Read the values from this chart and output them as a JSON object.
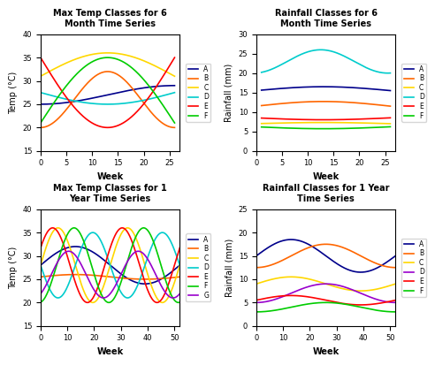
{
  "top_left": {
    "title": "Max Temp Classes for 6\nMonth Time Series",
    "xlabel": "Week",
    "ylabel": "Temp (°C)",
    "xlim": [
      0,
      27
    ],
    "ylim": [
      15,
      40
    ],
    "xticks": [
      0,
      5,
      10,
      15,
      20,
      25
    ],
    "yticks": [
      15,
      20,
      25,
      30,
      35,
      40
    ],
    "series": {
      "A": {
        "color": "#00008B"
      },
      "B": {
        "color": "#FF6600"
      },
      "C": {
        "color": "#FFD700"
      },
      "D": {
        "color": "#00CCCC"
      },
      "E": {
        "color": "#FF0000"
      },
      "F": {
        "color": "#00CC00"
      }
    }
  },
  "top_right": {
    "title": "Rainfall Classes for 6\nMonth Time Series",
    "xlabel": "Week",
    "ylabel": "Rainfall (mm)",
    "xlim": [
      0,
      27
    ],
    "ylim": [
      0,
      30
    ],
    "xticks": [
      0,
      5,
      10,
      15,
      20,
      25
    ],
    "yticks": [
      0,
      5,
      10,
      15,
      20,
      25,
      30
    ],
    "series": {
      "A": {
        "color": "#00008B"
      },
      "B": {
        "color": "#FF6600"
      },
      "C": {
        "color": "#FFD700"
      },
      "D": {
        "color": "#00CCCC"
      },
      "E": {
        "color": "#FF0000"
      },
      "F": {
        "color": "#00CC00"
      }
    }
  },
  "bottom_left": {
    "title": "Max Temp Classes for 1\nYear Time Series",
    "xlabel": "Week",
    "ylabel": "Temp (°C)",
    "xlim": [
      0,
      52
    ],
    "ylim": [
      15,
      40
    ],
    "xticks": [
      0,
      10,
      20,
      30,
      40,
      50
    ],
    "yticks": [
      15,
      20,
      25,
      30,
      35,
      40
    ],
    "series": {
      "A": {
        "color": "#00008B"
      },
      "B": {
        "color": "#FF6600"
      },
      "C": {
        "color": "#FFD700"
      },
      "D": {
        "color": "#00CCCC"
      },
      "E": {
        "color": "#FF0000"
      },
      "F": {
        "color": "#00CC00"
      },
      "G": {
        "color": "#9900CC"
      }
    }
  },
  "bottom_right": {
    "title": "Rainfall Classes for 1 Year\nTime Series",
    "xlabel": "Week",
    "ylabel": "Rainfall (mm)",
    "xlim": [
      0,
      52
    ],
    "ylim": [
      0,
      25
    ],
    "xticks": [
      0,
      10,
      20,
      30,
      40,
      50
    ],
    "yticks": [
      0,
      5,
      10,
      15,
      20,
      25
    ],
    "series": {
      "A": {
        "color": "#00008B"
      },
      "B": {
        "color": "#FF6600"
      },
      "C": {
        "color": "#FFD700"
      },
      "D": {
        "color": "#9900CC"
      },
      "E": {
        "color": "#FF0000"
      },
      "F": {
        "color": "#00CC00"
      }
    }
  }
}
